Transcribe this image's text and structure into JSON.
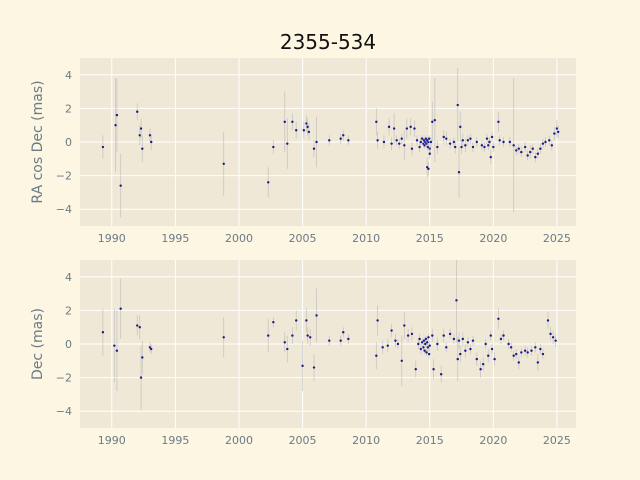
{
  "title": "2355-534",
  "colors": {
    "background": "#fdf6e3",
    "plot_area": "#efe8d6",
    "grid": "#ffffff",
    "points": "#1a1a8c",
    "error_bars": "#b8b8b8",
    "tick_text": "#6b7b85"
  },
  "chart_data": [
    {
      "type": "scatter",
      "title": "2355-534",
      "xlabel": "",
      "ylabel": "RA cos Dec (mas)",
      "xlim": [
        1987.5,
        2026.5
      ],
      "ylim": [
        -5,
        5
      ],
      "xticks": [
        1990,
        1995,
        2000,
        2005,
        2010,
        2015,
        2020,
        2025
      ],
      "yticks": [
        -4,
        -2,
        0,
        2,
        4
      ],
      "grid": true,
      "points": [
        {
          "x": 1989.3,
          "y": -0.3,
          "err": 0.7
        },
        {
          "x": 1990.3,
          "y": 1.0,
          "err": 2.8
        },
        {
          "x": 1990.4,
          "y": 1.6,
          "err": 2.2
        },
        {
          "x": 1990.7,
          "y": -2.6,
          "err": 1.9
        },
        {
          "x": 1992.0,
          "y": 1.8,
          "err": 0.5
        },
        {
          "x": 1992.2,
          "y": 0.4,
          "err": 0.6
        },
        {
          "x": 1992.3,
          "y": 0.8,
          "err": 0.6
        },
        {
          "x": 1992.4,
          "y": -0.4,
          "err": 0.8
        },
        {
          "x": 1993.0,
          "y": 0.4,
          "err": 0.4
        },
        {
          "x": 1993.1,
          "y": 0.0,
          "err": 0.5
        },
        {
          "x": 1998.8,
          "y": -1.3,
          "err": 1.9
        },
        {
          "x": 2002.3,
          "y": -2.4,
          "err": 0.9
        },
        {
          "x": 2002.7,
          "y": -0.3,
          "err": 0.4
        },
        {
          "x": 2003.6,
          "y": 1.2,
          "err": 1.8
        },
        {
          "x": 2003.8,
          "y": -0.1,
          "err": 1.5
        },
        {
          "x": 2004.2,
          "y": 1.2,
          "err": 0.5
        },
        {
          "x": 2004.5,
          "y": 0.7,
          "err": 0.5
        },
        {
          "x": 2005.1,
          "y": 0.7,
          "err": 0.5
        },
        {
          "x": 2005.3,
          "y": 1.1,
          "err": 0.5
        },
        {
          "x": 2005.4,
          "y": 0.9,
          "err": 0.5
        },
        {
          "x": 2005.5,
          "y": 0.6,
          "err": 0.5
        },
        {
          "x": 2005.9,
          "y": -0.4,
          "err": 0.5
        },
        {
          "x": 2006.1,
          "y": 0.0,
          "err": 1.5
        },
        {
          "x": 2007.1,
          "y": 0.1,
          "err": 0.3
        },
        {
          "x": 2008.0,
          "y": 0.2,
          "err": 0.3
        },
        {
          "x": 2008.2,
          "y": 0.4,
          "err": 0.3
        },
        {
          "x": 2008.6,
          "y": 0.1,
          "err": 0.3
        },
        {
          "x": 2010.8,
          "y": 1.2,
          "err": 0.8
        },
        {
          "x": 2010.9,
          "y": 0.1,
          "err": 0.5
        },
        {
          "x": 2011.4,
          "y": 0.0,
          "err": 0.4
        },
        {
          "x": 2011.8,
          "y": 0.9,
          "err": 0.5
        },
        {
          "x": 2012.0,
          "y": -0.1,
          "err": 0.4
        },
        {
          "x": 2012.2,
          "y": 0.8,
          "err": 0.9
        },
        {
          "x": 2012.4,
          "y": 0.1,
          "err": 0.3
        },
        {
          "x": 2012.6,
          "y": -0.1,
          "err": 0.3
        },
        {
          "x": 2012.8,
          "y": 0.2,
          "err": 0.3
        },
        {
          "x": 2013.0,
          "y": -0.2,
          "err": 0.9
        },
        {
          "x": 2013.2,
          "y": 0.8,
          "err": 0.6
        },
        {
          "x": 2013.5,
          "y": 0.9,
          "err": 0.5
        },
        {
          "x": 2013.6,
          "y": -0.4,
          "err": 0.4
        },
        {
          "x": 2013.8,
          "y": 0.8,
          "err": 0.5
        },
        {
          "x": 2014.0,
          "y": 0.1,
          "err": 0.3
        },
        {
          "x": 2014.2,
          "y": -0.3,
          "err": 0.3
        },
        {
          "x": 2014.3,
          "y": 0.0,
          "err": 0.3
        },
        {
          "x": 2014.4,
          "y": 0.2,
          "err": 0.2
        },
        {
          "x": 2014.5,
          "y": -0.1,
          "err": 0.2
        },
        {
          "x": 2014.55,
          "y": 0.1,
          "err": 0.2
        },
        {
          "x": 2014.6,
          "y": -0.2,
          "err": 0.2
        },
        {
          "x": 2014.65,
          "y": 0.0,
          "err": 0.2
        },
        {
          "x": 2014.7,
          "y": 0.2,
          "err": 0.2
        },
        {
          "x": 2014.75,
          "y": -0.1,
          "err": 0.2
        },
        {
          "x": 2014.8,
          "y": 0.1,
          "err": 0.2
        },
        {
          "x": 2014.85,
          "y": -0.3,
          "err": 0.2
        },
        {
          "x": 2014.9,
          "y": 0.0,
          "err": 0.2
        },
        {
          "x": 2014.95,
          "y": 0.2,
          "err": 0.2
        },
        {
          "x": 2015.0,
          "y": -0.4,
          "err": 0.3
        },
        {
          "x": 2014.8,
          "y": -1.5,
          "err": 0.6
        },
        {
          "x": 2014.9,
          "y": -1.6,
          "err": 0.4
        },
        {
          "x": 2015.0,
          "y": -0.7,
          "err": 0.3
        },
        {
          "x": 2015.1,
          "y": 0.0,
          "err": 0.3
        },
        {
          "x": 2015.2,
          "y": 1.2,
          "err": 1.2
        },
        {
          "x": 2015.4,
          "y": 1.3,
          "err": 2.5
        },
        {
          "x": 2015.6,
          "y": -0.3,
          "err": 0.4
        },
        {
          "x": 2016.1,
          "y": 0.3,
          "err": 0.4
        },
        {
          "x": 2016.3,
          "y": 0.2,
          "err": 0.4
        },
        {
          "x": 2016.6,
          "y": -0.1,
          "err": 0.3
        },
        {
          "x": 2016.9,
          "y": 0.0,
          "err": 0.3
        },
        {
          "x": 2017.0,
          "y": -0.3,
          "err": 0.4
        },
        {
          "x": 2017.2,
          "y": 2.2,
          "err": 2.2
        },
        {
          "x": 2017.3,
          "y": -1.8,
          "err": 1.5
        },
        {
          "x": 2017.4,
          "y": 0.9,
          "err": 0.9
        },
        {
          "x": 2017.5,
          "y": -0.3,
          "err": 0.4
        },
        {
          "x": 2017.6,
          "y": 0.1,
          "err": 0.4
        },
        {
          "x": 2017.8,
          "y": -0.2,
          "err": 0.4
        },
        {
          "x": 2018.0,
          "y": 0.1,
          "err": 0.3
        },
        {
          "x": 2018.2,
          "y": 0.2,
          "err": 0.3
        },
        {
          "x": 2018.4,
          "y": -0.3,
          "err": 0.3
        },
        {
          "x": 2018.7,
          "y": 0.0,
          "err": 0.3
        },
        {
          "x": 2019.1,
          "y": -0.2,
          "err": 0.3
        },
        {
          "x": 2019.3,
          "y": -0.3,
          "err": 0.3
        },
        {
          "x": 2019.5,
          "y": 0.2,
          "err": 0.3
        },
        {
          "x": 2019.6,
          "y": -0.2,
          "err": 0.3
        },
        {
          "x": 2019.7,
          "y": 0.0,
          "err": 0.3
        },
        {
          "x": 2019.8,
          "y": -0.9,
          "err": 0.4
        },
        {
          "x": 2019.9,
          "y": 0.3,
          "err": 0.3
        },
        {
          "x": 2020.0,
          "y": -0.3,
          "err": 0.3
        },
        {
          "x": 2020.4,
          "y": 1.2,
          "err": 0.6
        },
        {
          "x": 2020.5,
          "y": 0.1,
          "err": 0.3
        },
        {
          "x": 2020.8,
          "y": 0.0,
          "err": 0.3
        },
        {
          "x": 2021.3,
          "y": 0.0,
          "err": 0.3
        },
        {
          "x": 2021.6,
          "y": -0.2,
          "err": 4.0
        },
        {
          "x": 2021.8,
          "y": -0.5,
          "err": 0.3
        },
        {
          "x": 2022.0,
          "y": -0.4,
          "err": 0.3
        },
        {
          "x": 2022.2,
          "y": -0.6,
          "err": 0.3
        },
        {
          "x": 2022.5,
          "y": -0.3,
          "err": 0.3
        },
        {
          "x": 2022.7,
          "y": -0.8,
          "err": 0.3
        },
        {
          "x": 2022.9,
          "y": -0.6,
          "err": 0.4
        },
        {
          "x": 2023.1,
          "y": -0.4,
          "err": 0.3
        },
        {
          "x": 2023.3,
          "y": -0.9,
          "err": 0.3
        },
        {
          "x": 2023.5,
          "y": -0.7,
          "err": 0.3
        },
        {
          "x": 2023.7,
          "y": -0.4,
          "err": 0.3
        },
        {
          "x": 2023.9,
          "y": -0.1,
          "err": 0.3
        },
        {
          "x": 2024.1,
          "y": 0.0,
          "err": 0.3
        },
        {
          "x": 2024.4,
          "y": 0.1,
          "err": 0.3
        },
        {
          "x": 2024.6,
          "y": -0.2,
          "err": 0.3
        },
        {
          "x": 2024.8,
          "y": 0.5,
          "err": 0.4
        },
        {
          "x": 2025.0,
          "y": 0.8,
          "err": 0.5
        },
        {
          "x": 2025.1,
          "y": 0.6,
          "err": 0.4
        }
      ]
    },
    {
      "type": "scatter",
      "title": "",
      "xlabel": "",
      "ylabel": "Dec (mas)",
      "xlim": [
        1987.5,
        2026.5
      ],
      "ylim": [
        -5,
        5
      ],
      "xticks": [
        1990,
        1995,
        2000,
        2005,
        2010,
        2015,
        2020,
        2025
      ],
      "yticks": [
        -4,
        -2,
        0,
        2,
        4
      ],
      "grid": true,
      "points": [
        {
          "x": 1989.3,
          "y": 0.7,
          "err": 1.4
        },
        {
          "x": 1990.2,
          "y": -0.1,
          "err": 2.2
        },
        {
          "x": 1990.4,
          "y": -0.4,
          "err": 2.4
        },
        {
          "x": 1990.7,
          "y": 2.1,
          "err": 1.8
        },
        {
          "x": 1992.0,
          "y": 1.1,
          "err": 0.6
        },
        {
          "x": 1992.2,
          "y": 1.0,
          "err": 0.7
        },
        {
          "x": 1992.3,
          "y": -2.0,
          "err": 1.9
        },
        {
          "x": 1992.4,
          "y": -0.8,
          "err": 1.0
        },
        {
          "x": 1993.0,
          "y": -0.2,
          "err": 0.3
        },
        {
          "x": 1993.1,
          "y": -0.3,
          "err": 0.3
        },
        {
          "x": 1998.8,
          "y": 0.4,
          "err": 1.2
        },
        {
          "x": 2002.3,
          "y": 0.5,
          "err": 1.0
        },
        {
          "x": 2002.7,
          "y": 1.3,
          "err": 0.3
        },
        {
          "x": 2003.6,
          "y": 0.1,
          "err": 0.6
        },
        {
          "x": 2003.8,
          "y": -0.3,
          "err": 0.8
        },
        {
          "x": 2004.2,
          "y": 0.5,
          "err": 0.5
        },
        {
          "x": 2004.5,
          "y": 1.4,
          "err": 0.6
        },
        {
          "x": 2005.0,
          "y": -1.3,
          "err": 1.5
        },
        {
          "x": 2005.3,
          "y": 1.4,
          "err": 0.7
        },
        {
          "x": 2005.4,
          "y": 0.5,
          "err": 0.5
        },
        {
          "x": 2005.6,
          "y": 0.4,
          "err": 0.5
        },
        {
          "x": 2005.9,
          "y": -1.4,
          "err": 0.8
        },
        {
          "x": 2006.1,
          "y": 1.7,
          "err": 1.6
        },
        {
          "x": 2007.1,
          "y": 0.2,
          "err": 0.3
        },
        {
          "x": 2008.0,
          "y": 0.2,
          "err": 0.3
        },
        {
          "x": 2008.2,
          "y": 0.7,
          "err": 0.3
        },
        {
          "x": 2008.6,
          "y": 0.3,
          "err": 0.3
        },
        {
          "x": 2010.8,
          "y": -0.7,
          "err": 0.8
        },
        {
          "x": 2010.9,
          "y": 1.4,
          "err": 0.9
        },
        {
          "x": 2011.3,
          "y": -0.2,
          "err": 0.4
        },
        {
          "x": 2011.7,
          "y": -0.1,
          "err": 0.4
        },
        {
          "x": 2012.0,
          "y": 0.8,
          "err": 0.4
        },
        {
          "x": 2012.3,
          "y": 0.2,
          "err": 0.4
        },
        {
          "x": 2012.5,
          "y": 0.0,
          "err": 0.3
        },
        {
          "x": 2012.8,
          "y": -1.0,
          "err": 1.5
        },
        {
          "x": 2013.0,
          "y": 1.1,
          "err": 0.8
        },
        {
          "x": 2013.3,
          "y": 0.5,
          "err": 0.4
        },
        {
          "x": 2013.6,
          "y": 0.6,
          "err": 0.4
        },
        {
          "x": 2013.9,
          "y": -1.5,
          "err": 0.5
        },
        {
          "x": 2014.1,
          "y": 0.0,
          "err": 0.3
        },
        {
          "x": 2014.2,
          "y": 0.3,
          "err": 0.3
        },
        {
          "x": 2014.3,
          "y": -0.3,
          "err": 0.3
        },
        {
          "x": 2014.4,
          "y": 0.1,
          "err": 0.2
        },
        {
          "x": 2014.5,
          "y": -0.2,
          "err": 0.2
        },
        {
          "x": 2014.55,
          "y": 0.2,
          "err": 0.2
        },
        {
          "x": 2014.6,
          "y": -0.4,
          "err": 0.2
        },
        {
          "x": 2014.65,
          "y": 0.0,
          "err": 0.2
        },
        {
          "x": 2014.7,
          "y": 0.3,
          "err": 0.2
        },
        {
          "x": 2014.75,
          "y": -0.5,
          "err": 0.2
        },
        {
          "x": 2014.8,
          "y": 0.1,
          "err": 0.2
        },
        {
          "x": 2014.85,
          "y": -0.2,
          "err": 0.2
        },
        {
          "x": 2014.9,
          "y": 0.4,
          "err": 0.2
        },
        {
          "x": 2014.95,
          "y": -0.6,
          "err": 0.3
        },
        {
          "x": 2015.0,
          "y": -0.1,
          "err": 0.3
        },
        {
          "x": 2015.2,
          "y": 0.5,
          "err": 0.4
        },
        {
          "x": 2015.3,
          "y": -1.5,
          "err": 0.6
        },
        {
          "x": 2015.6,
          "y": 0.0,
          "err": 0.4
        },
        {
          "x": 2015.9,
          "y": -1.8,
          "err": 0.5
        },
        {
          "x": 2016.1,
          "y": 0.5,
          "err": 0.4
        },
        {
          "x": 2016.3,
          "y": -0.2,
          "err": 0.3
        },
        {
          "x": 2016.6,
          "y": 0.6,
          "err": 0.3
        },
        {
          "x": 2016.9,
          "y": 0.3,
          "err": 0.3
        },
        {
          "x": 2017.1,
          "y": 2.6,
          "err": 2.5
        },
        {
          "x": 2017.2,
          "y": -0.9,
          "err": 1.3
        },
        {
          "x": 2017.3,
          "y": 0.2,
          "err": 0.5
        },
        {
          "x": 2017.4,
          "y": -0.6,
          "err": 0.5
        },
        {
          "x": 2017.6,
          "y": 0.3,
          "err": 0.4
        },
        {
          "x": 2017.8,
          "y": -0.4,
          "err": 0.4
        },
        {
          "x": 2018.0,
          "y": 0.1,
          "err": 0.3
        },
        {
          "x": 2018.2,
          "y": -0.3,
          "err": 0.3
        },
        {
          "x": 2018.4,
          "y": 0.2,
          "err": 0.3
        },
        {
          "x": 2018.7,
          "y": -0.9,
          "err": 0.4
        },
        {
          "x": 2019.0,
          "y": -1.5,
          "err": 0.5
        },
        {
          "x": 2019.2,
          "y": -1.2,
          "err": 0.4
        },
        {
          "x": 2019.4,
          "y": 0.0,
          "err": 0.3
        },
        {
          "x": 2019.6,
          "y": -0.7,
          "err": 0.4
        },
        {
          "x": 2019.8,
          "y": 0.5,
          "err": 0.3
        },
        {
          "x": 2019.9,
          "y": -0.3,
          "err": 0.3
        },
        {
          "x": 2020.1,
          "y": -0.9,
          "err": 0.4
        },
        {
          "x": 2020.4,
          "y": 1.5,
          "err": 0.6
        },
        {
          "x": 2020.6,
          "y": 0.3,
          "err": 0.3
        },
        {
          "x": 2020.8,
          "y": 0.5,
          "err": 0.3
        },
        {
          "x": 2021.2,
          "y": 0.0,
          "err": 0.3
        },
        {
          "x": 2021.4,
          "y": -0.2,
          "err": 0.3
        },
        {
          "x": 2021.6,
          "y": -0.7,
          "err": 0.3
        },
        {
          "x": 2021.8,
          "y": -0.6,
          "err": 0.3
        },
        {
          "x": 2022.0,
          "y": -1.1,
          "err": 0.4
        },
        {
          "x": 2022.2,
          "y": -0.5,
          "err": 0.3
        },
        {
          "x": 2022.5,
          "y": -0.4,
          "err": 0.3
        },
        {
          "x": 2022.7,
          "y": -0.5,
          "err": 0.3
        },
        {
          "x": 2023.0,
          "y": -0.4,
          "err": 0.3
        },
        {
          "x": 2023.3,
          "y": -0.2,
          "err": 0.3
        },
        {
          "x": 2023.5,
          "y": -1.1,
          "err": 0.5
        },
        {
          "x": 2023.7,
          "y": -0.3,
          "err": 0.3
        },
        {
          "x": 2023.9,
          "y": -0.6,
          "err": 0.3
        },
        {
          "x": 2024.3,
          "y": 1.4,
          "err": 0.5
        },
        {
          "x": 2024.5,
          "y": 0.6,
          "err": 0.4
        },
        {
          "x": 2024.7,
          "y": 0.4,
          "err": 0.4
        },
        {
          "x": 2024.9,
          "y": 0.2,
          "err": 0.4
        }
      ]
    }
  ]
}
